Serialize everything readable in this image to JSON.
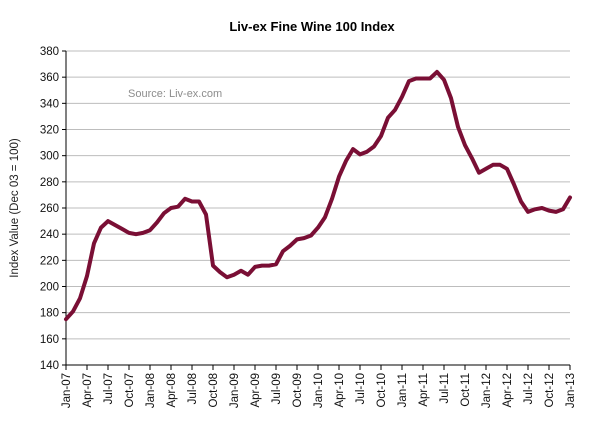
{
  "chart_data": {
    "type": "line",
    "title": "Liv-ex Fine Wine 100 Index",
    "ylabel": "Index Value (Dec 03 = 100)",
    "xlabel": "",
    "annotation": "Source: Liv-ex.com",
    "ylim": [
      140,
      380
    ],
    "yticks": [
      140,
      160,
      180,
      200,
      220,
      240,
      260,
      280,
      300,
      320,
      340,
      360,
      380
    ],
    "xtick_labels": [
      "Jan-07",
      "Apr-07",
      "Jul-07",
      "Oct-07",
      "Jan-08",
      "Apr-08",
      "Jul-08",
      "Oct-08",
      "Jan-09",
      "Apr-09",
      "Jul-09",
      "Oct-09",
      "Jan-10",
      "Apr-10",
      "Jul-10",
      "Oct-10",
      "Jan-11",
      "Apr-11",
      "Jul-11",
      "Oct-11",
      "Jan-12",
      "Apr-12",
      "Jul-12",
      "Oct-12",
      "Jan-13"
    ],
    "grid": "horizontal",
    "line_color": "#7a0f35",
    "series": [
      {
        "values": [
          175,
          181,
          191,
          208,
          233,
          245,
          250,
          247,
          244,
          241,
          240,
          241,
          243,
          249,
          256,
          260,
          261,
          267,
          265,
          265,
          255,
          216,
          211,
          207,
          209,
          212,
          209,
          215,
          216,
          216,
          217,
          227,
          231,
          236,
          237,
          239,
          245,
          253,
          267,
          284,
          296,
          305,
          301,
          303,
          307,
          315,
          329,
          335,
          345,
          357,
          359,
          359,
          359,
          364,
          358,
          344,
          322,
          308,
          298,
          287,
          290,
          293,
          293,
          290,
          278,
          265,
          257,
          259,
          260,
          258,
          257,
          259,
          268
        ]
      }
    ]
  }
}
